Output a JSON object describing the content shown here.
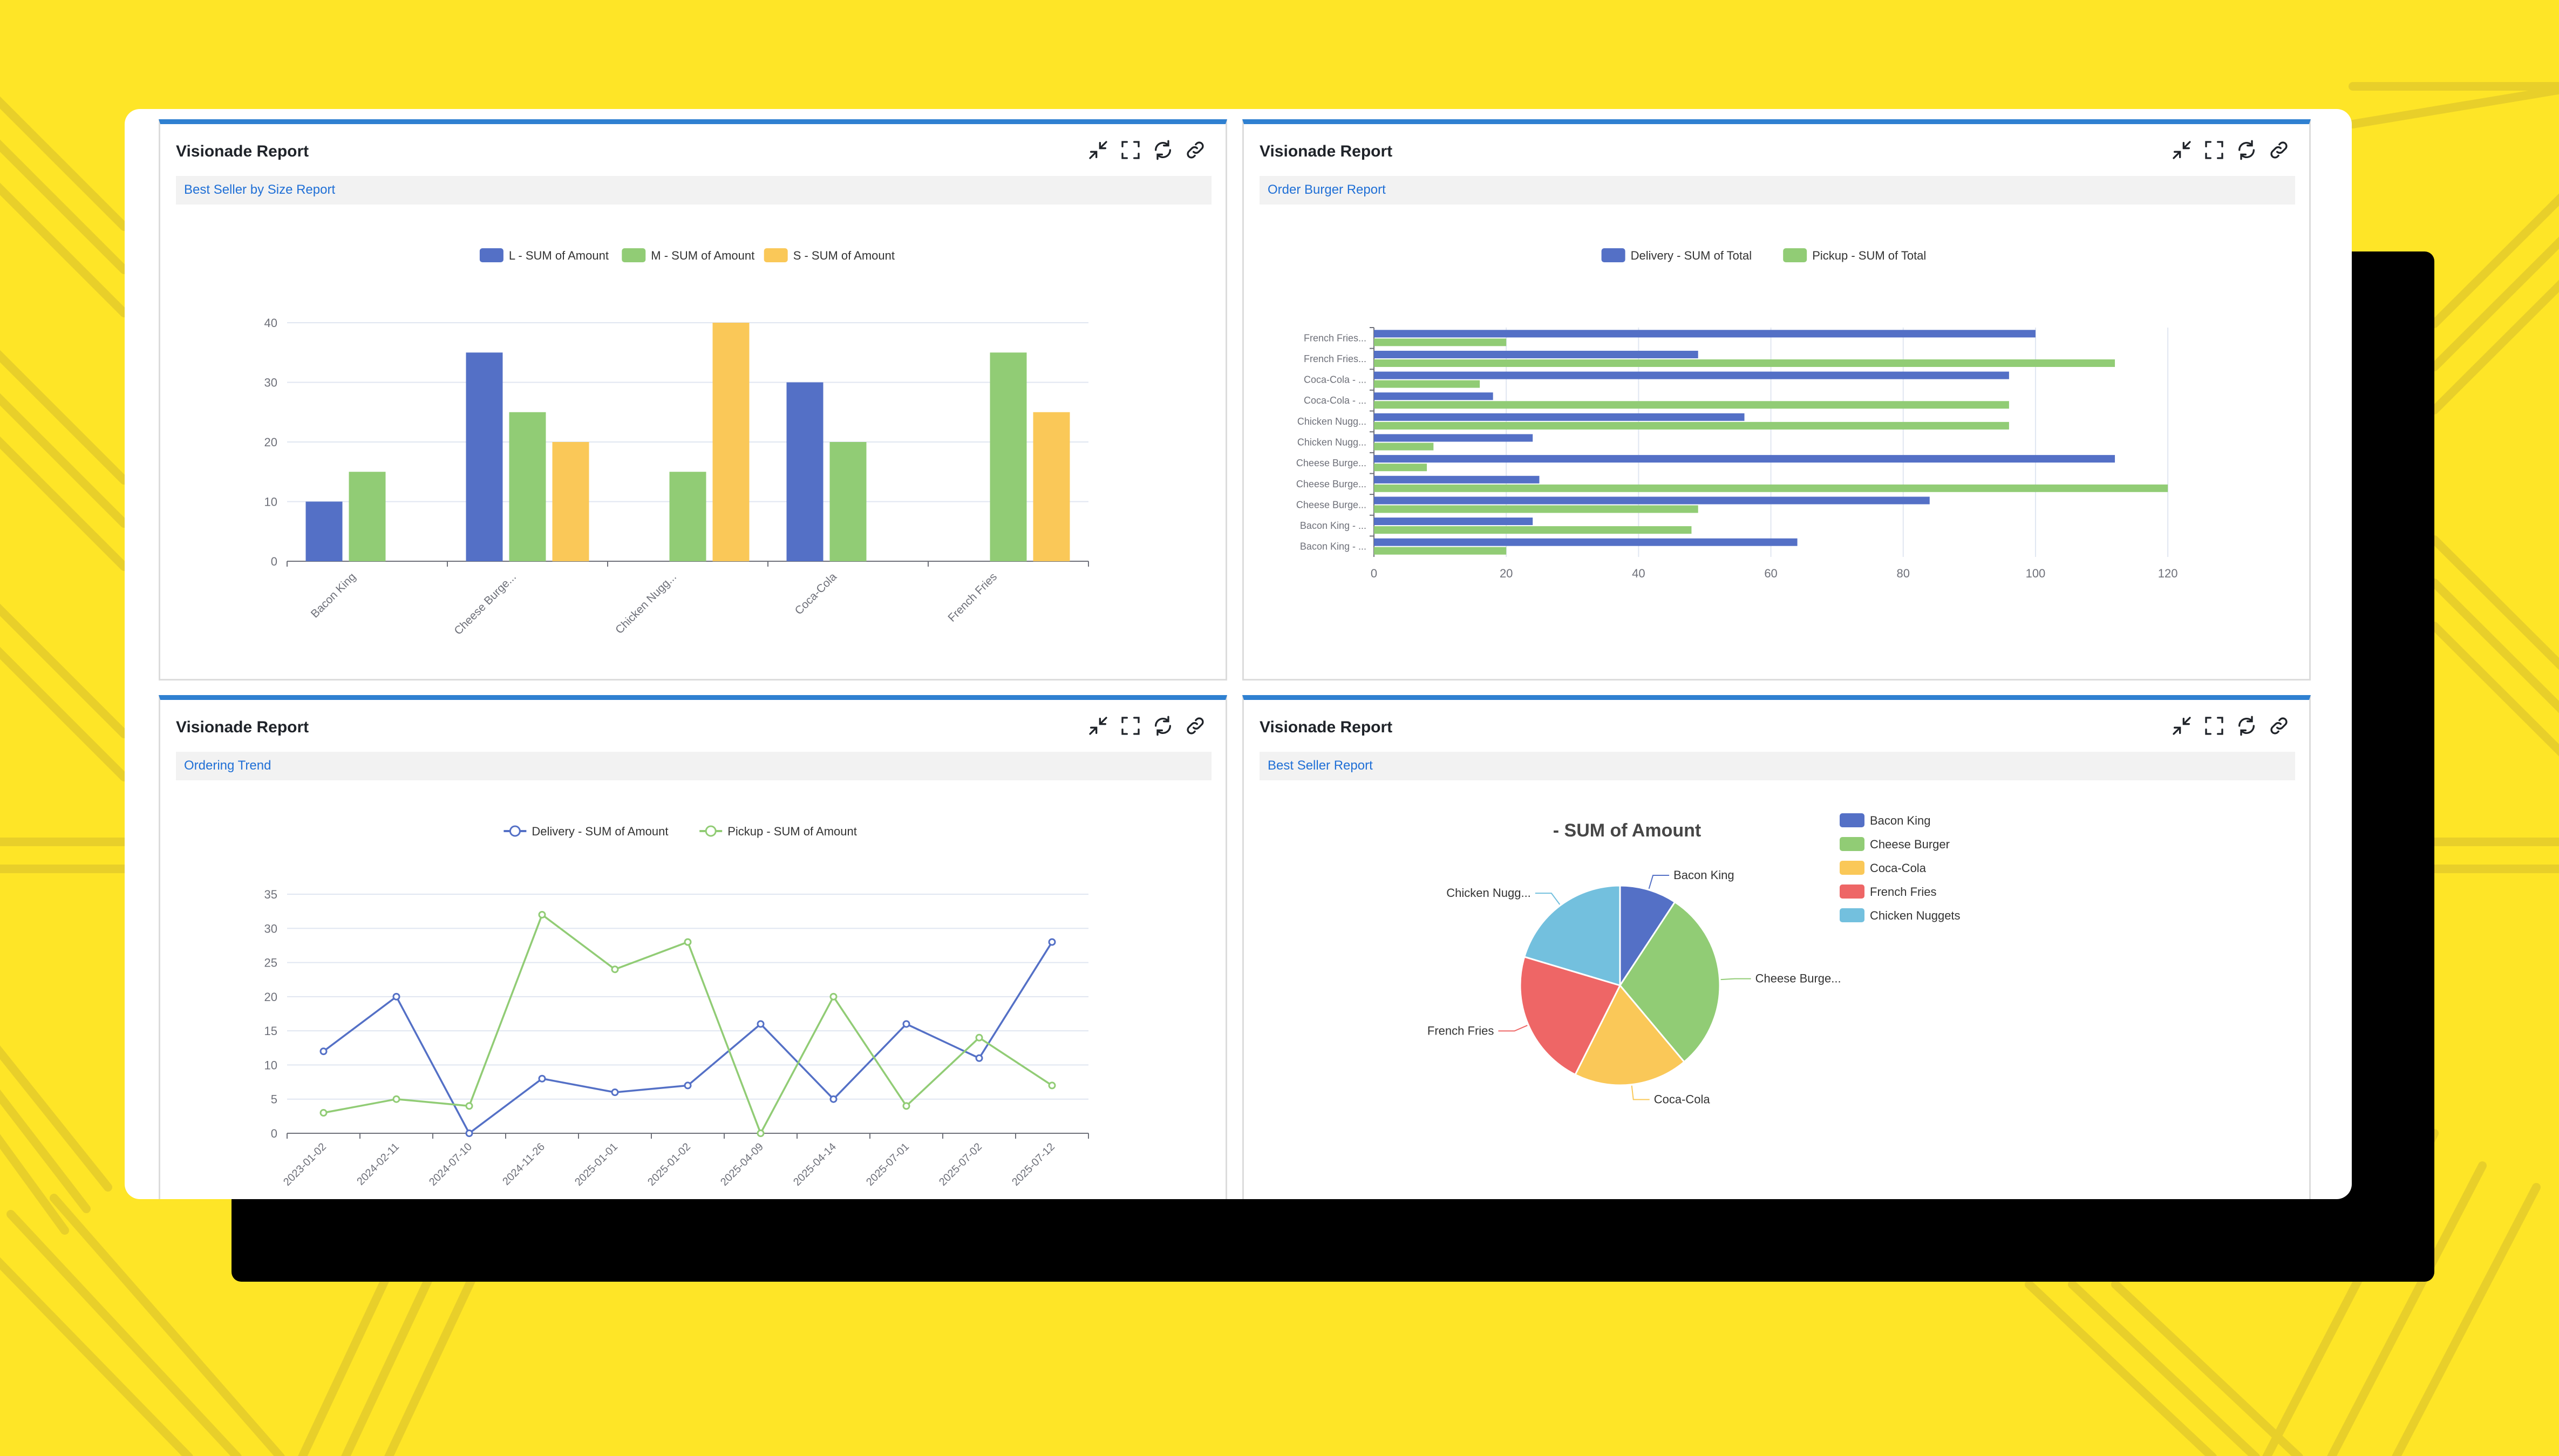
{
  "colors": {
    "background": "#fee527",
    "accent": "#2f80d1",
    "blue": "#5470c6",
    "green": "#91cc75",
    "yellow": "#fac858",
    "red": "#ee6666",
    "cyan": "#73c0de"
  },
  "panels": [
    {
      "title": "Visionade Report",
      "subtitle": "Best Seller by Size Report",
      "tools": [
        "collapse-icon",
        "fullscreen-icon",
        "refresh-icon",
        "link-icon"
      ]
    },
    {
      "title": "Visionade Report",
      "subtitle": "Order Burger Report",
      "tools": [
        "collapse-icon",
        "fullscreen-icon",
        "refresh-icon",
        "link-icon"
      ]
    },
    {
      "title": "Visionade Report",
      "subtitle": "Ordering Trend",
      "tools": [
        "collapse-icon",
        "fullscreen-icon",
        "refresh-icon",
        "link-icon"
      ]
    },
    {
      "title": "Visionade Report",
      "subtitle": "Best Seller Report",
      "tools": [
        "collapse-icon",
        "fullscreen-icon",
        "refresh-icon",
        "link-icon"
      ]
    }
  ],
  "chart_data": [
    {
      "type": "bar",
      "title": "",
      "categories": [
        "Bacon King",
        "Cheese Burge...",
        "Chicken Nugg...",
        "Coca-Cola",
        "French Fries"
      ],
      "series": [
        {
          "name": "L - SUM of Amount",
          "color": "#5470c6",
          "values": [
            10,
            35,
            null,
            30,
            null
          ]
        },
        {
          "name": "M - SUM of Amount",
          "color": "#91cc75",
          "values": [
            15,
            25,
            15,
            20,
            35
          ]
        },
        {
          "name": "S - SUM of Amount",
          "color": "#fac858",
          "values": [
            null,
            20,
            40,
            null,
            25
          ]
        }
      ],
      "yticks": [
        "0",
        "10",
        "20",
        "30",
        "40"
      ],
      "ylim": [
        0,
        40
      ],
      "grid": true,
      "legend": "top-center"
    },
    {
      "type": "bar",
      "orientation": "horizontal",
      "title": "",
      "categories": [
        "French Fries...",
        "French Fries...",
        "Coca-Cola - ...",
        "Coca-Cola - ...",
        "Chicken Nugg...",
        "Chicken Nugg...",
        "Cheese Burge...",
        "Cheese Burge...",
        "Cheese Burge...",
        "Bacon King - ...",
        "Bacon King - ..."
      ],
      "series": [
        {
          "name": "Delivery - SUM of Total",
          "color": "#5470c6",
          "values": [
            100,
            49,
            96,
            18,
            56,
            24,
            112,
            25,
            84,
            24,
            64
          ]
        },
        {
          "name": "Pickup - SUM of Total",
          "color": "#91cc75",
          "values": [
            20,
            112,
            16,
            96,
            96,
            9,
            8,
            120,
            49,
            48,
            20
          ]
        }
      ],
      "xticks": [
        "0",
        "20",
        "40",
        "60",
        "80",
        "100",
        "120"
      ],
      "xlim": [
        0,
        120
      ],
      "grid": true,
      "legend": "top-center"
    },
    {
      "type": "line",
      "title": "",
      "x": [
        "2023-01-02",
        "2024-02-11",
        "2024-07-10",
        "2024-11-26",
        "2025-01-01",
        "2025-01-02",
        "2025-04-09",
        "2025-04-14",
        "2025-07-01",
        "2025-07-02",
        "2025-07-12"
      ],
      "series": [
        {
          "name": "Delivery - SUM of Amount",
          "color": "#5470c6",
          "values": [
            12,
            20,
            0,
            8,
            6,
            7,
            16,
            5,
            16,
            11,
            28
          ]
        },
        {
          "name": "Pickup - SUM of Amount",
          "color": "#91cc75",
          "values": [
            3,
            5,
            4,
            32,
            24,
            28,
            0,
            20,
            4,
            14,
            7
          ]
        }
      ],
      "yticks": [
        "0",
        "5",
        "10",
        "15",
        "20",
        "25",
        "30",
        "35"
      ],
      "ylim": [
        0,
        35
      ],
      "grid": true,
      "legend": "top-center"
    },
    {
      "type": "pie",
      "title": "- SUM of Amount",
      "slices": [
        {
          "name": "Bacon King",
          "label": "Bacon King",
          "value": 25,
          "color": "#5470c6"
        },
        {
          "name": "Cheese Burger",
          "label": "Cheese Burge...",
          "value": 80,
          "color": "#91cc75"
        },
        {
          "name": "Coca-Cola",
          "label": "Coca-Cola",
          "value": 50,
          "color": "#fac858"
        },
        {
          "name": "French Fries",
          "label": "French Fries",
          "value": 60,
          "color": "#ee6666"
        },
        {
          "name": "Chicken Nuggets",
          "label": "Chicken Nugg...",
          "value": 55,
          "color": "#73c0de"
        }
      ],
      "legend": "right"
    }
  ]
}
